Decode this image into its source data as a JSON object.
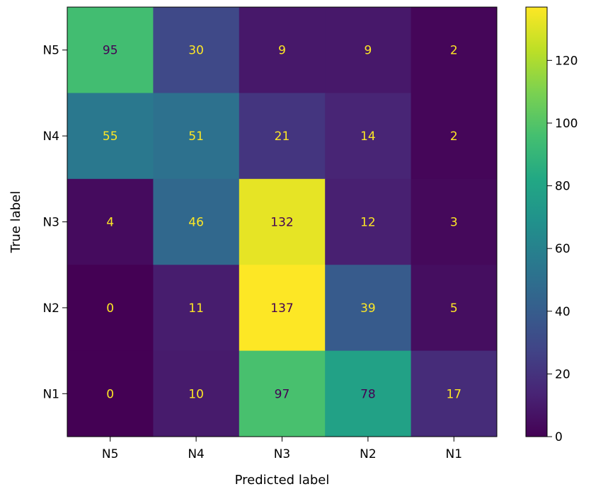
{
  "chart_data": {
    "type": "heatmap",
    "title": "",
    "xlabel": "Predicted label",
    "ylabel": "True label",
    "x_categories": [
      "N5",
      "N4",
      "N3",
      "N2",
      "N1"
    ],
    "y_categories": [
      "N5",
      "N4",
      "N3",
      "N2",
      "N1"
    ],
    "values": [
      [
        95,
        30,
        9,
        9,
        2
      ],
      [
        55,
        51,
        21,
        14,
        2
      ],
      [
        4,
        46,
        132,
        12,
        3
      ],
      [
        0,
        11,
        137,
        39,
        5
      ],
      [
        0,
        10,
        97,
        78,
        17
      ]
    ],
    "colormap": "viridis",
    "color_range": [
      0,
      137
    ],
    "colorbar_ticks": [
      0,
      20,
      40,
      60,
      80,
      100,
      120
    ],
    "text_color_high": "#440154",
    "text_color_low": "#fde725"
  }
}
